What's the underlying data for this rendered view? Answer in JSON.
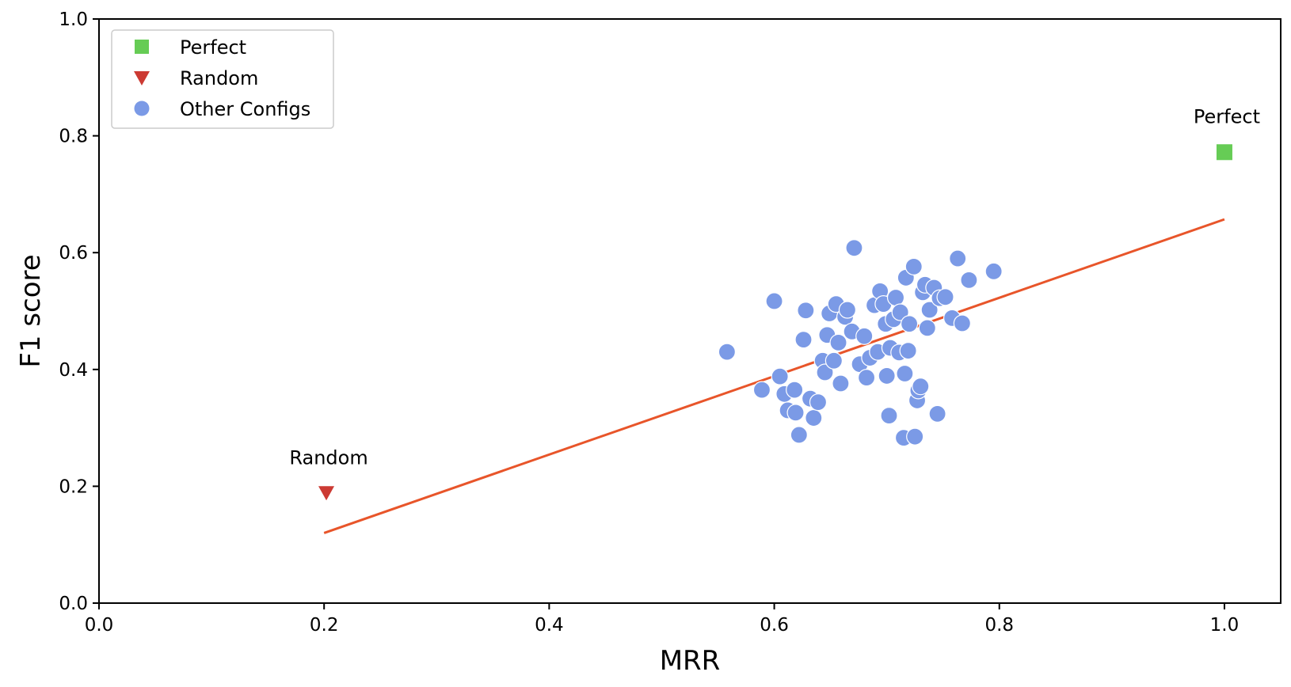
{
  "chart_data": {
    "type": "scatter",
    "xlabel": "MRR",
    "ylabel": "F1 score",
    "xlim": [
      0.0,
      1.05
    ],
    "ylim": [
      0.0,
      1.0
    ],
    "xticks": [
      "0.0",
      "0.2",
      "0.4",
      "0.6",
      "0.8",
      "1.0"
    ],
    "yticks": [
      "0.0",
      "0.2",
      "0.4",
      "0.6",
      "0.8",
      "1.0"
    ],
    "grid": false,
    "legend_position": "top-left",
    "legend": [
      {
        "label": "Perfect",
        "marker": "square",
        "color": "#66cc55"
      },
      {
        "label": "Random",
        "marker": "triangle-down",
        "color": "#cc3a33"
      },
      {
        "label": "Other Configs",
        "marker": "circle",
        "color": "#7b9ae6"
      }
    ],
    "series": [
      {
        "name": "Perfect",
        "marker": "square",
        "color": "#66cc55",
        "points": [
          [
            1.0,
            0.772
          ]
        ]
      },
      {
        "name": "Random",
        "marker": "triangle-down",
        "color": "#cc3a33",
        "points": [
          [
            0.202,
            0.188
          ]
        ]
      },
      {
        "name": "Other Configs",
        "marker": "circle",
        "color": "#7b9ae6",
        "points": [
          [
            0.558,
            0.43
          ],
          [
            0.589,
            0.365
          ],
          [
            0.6,
            0.517
          ],
          [
            0.605,
            0.388
          ],
          [
            0.609,
            0.358
          ],
          [
            0.612,
            0.33
          ],
          [
            0.618,
            0.365
          ],
          [
            0.619,
            0.326
          ],
          [
            0.622,
            0.288
          ],
          [
            0.626,
            0.451
          ],
          [
            0.628,
            0.501
          ],
          [
            0.632,
            0.35
          ],
          [
            0.635,
            0.317
          ],
          [
            0.639,
            0.344
          ],
          [
            0.643,
            0.415
          ],
          [
            0.645,
            0.395
          ],
          [
            0.647,
            0.459
          ],
          [
            0.649,
            0.496
          ],
          [
            0.653,
            0.415
          ],
          [
            0.655,
            0.512
          ],
          [
            0.657,
            0.446
          ],
          [
            0.659,
            0.376
          ],
          [
            0.663,
            0.49
          ],
          [
            0.665,
            0.502
          ],
          [
            0.669,
            0.465
          ],
          [
            0.671,
            0.608
          ],
          [
            0.676,
            0.409
          ],
          [
            0.68,
            0.457
          ],
          [
            0.682,
            0.386
          ],
          [
            0.685,
            0.42
          ],
          [
            0.689,
            0.51
          ],
          [
            0.692,
            0.43
          ],
          [
            0.694,
            0.534
          ],
          [
            0.697,
            0.512
          ],
          [
            0.699,
            0.478
          ],
          [
            0.7,
            0.389
          ],
          [
            0.702,
            0.321
          ],
          [
            0.703,
            0.437
          ],
          [
            0.706,
            0.486
          ],
          [
            0.708,
            0.523
          ],
          [
            0.711,
            0.429
          ],
          [
            0.712,
            0.498
          ],
          [
            0.715,
            0.283
          ],
          [
            0.716,
            0.393
          ],
          [
            0.717,
            0.557
          ],
          [
            0.719,
            0.432
          ],
          [
            0.72,
            0.478
          ],
          [
            0.724,
            0.576
          ],
          [
            0.725,
            0.285
          ],
          [
            0.727,
            0.347
          ],
          [
            0.728,
            0.364
          ],
          [
            0.73,
            0.371
          ],
          [
            0.732,
            0.532
          ],
          [
            0.734,
            0.545
          ],
          [
            0.736,
            0.471
          ],
          [
            0.738,
            0.502
          ],
          [
            0.742,
            0.54
          ],
          [
            0.745,
            0.324
          ],
          [
            0.747,
            0.522
          ],
          [
            0.752,
            0.524
          ],
          [
            0.758,
            0.488
          ],
          [
            0.763,
            0.59
          ],
          [
            0.767,
            0.479
          ],
          [
            0.773,
            0.553
          ],
          [
            0.795,
            0.568
          ]
        ]
      }
    ],
    "trend_line": {
      "color": "#e8552a",
      "from": [
        0.2,
        0.12
      ],
      "to": [
        1.0,
        0.657
      ]
    },
    "annotations": [
      {
        "text": "Perfect",
        "x": 1.0,
        "y": 0.772
      },
      {
        "text": "Random",
        "x": 0.202,
        "y": 0.188
      }
    ]
  }
}
